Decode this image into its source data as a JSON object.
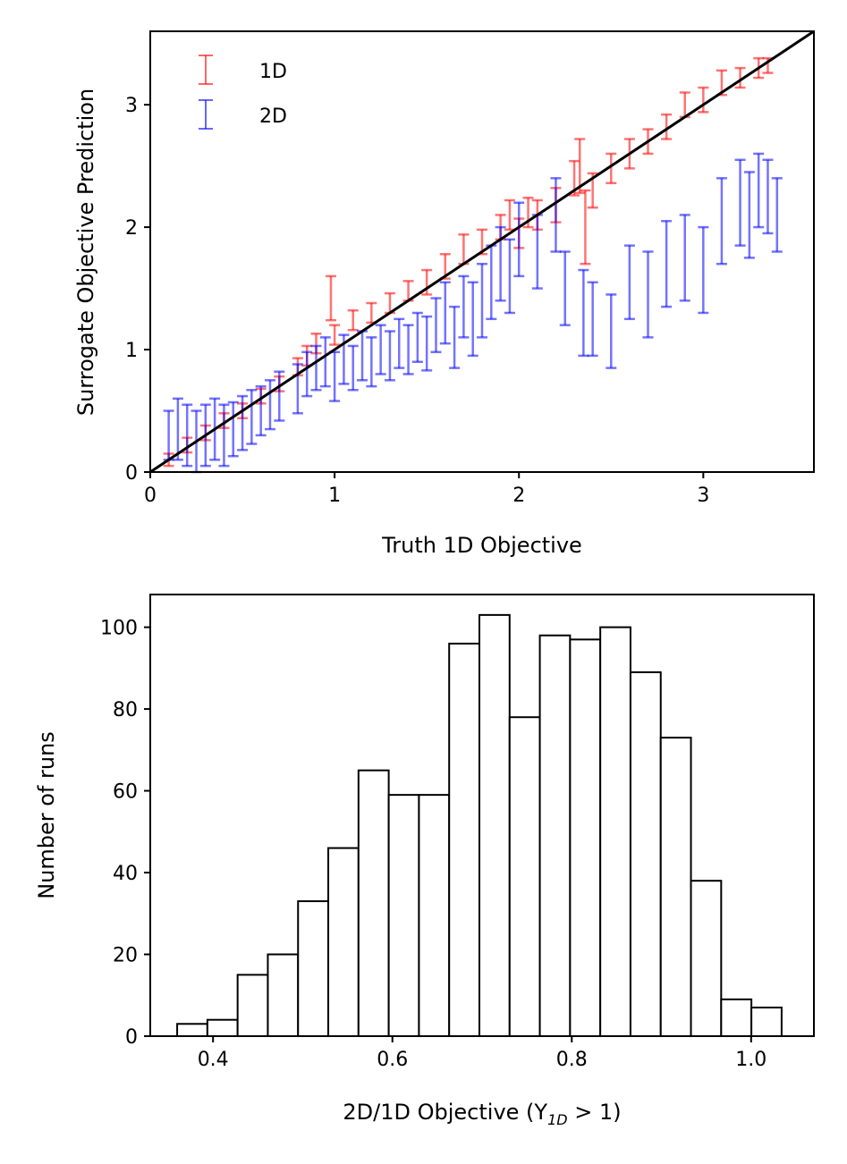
{
  "chart_data": [
    {
      "type": "scatter",
      "title": "",
      "xlabel": "Truth 1D Objective",
      "ylabel": "Surrogate Objective Prediction",
      "xlim": [
        0,
        3.6
      ],
      "ylim": [
        0,
        3.6
      ],
      "xticks": [
        "0",
        "1",
        "2",
        "3"
      ],
      "yticks": [
        "0",
        "1",
        "2",
        "3"
      ],
      "legend": "top-left",
      "identity_line": true,
      "series": [
        {
          "name": "1D",
          "color": "#ff0000",
          "points": [
            [
              0.1,
              0.1,
              0.05
            ],
            [
              0.2,
              0.22,
              0.06
            ],
            [
              0.3,
              0.32,
              0.06
            ],
            [
              0.4,
              0.42,
              0.06
            ],
            [
              0.5,
              0.5,
              0.06
            ],
            [
              0.6,
              0.62,
              0.06
            ],
            [
              0.7,
              0.72,
              0.06
            ],
            [
              0.8,
              0.86,
              0.07
            ],
            [
              0.85,
              0.95,
              0.08
            ],
            [
              0.9,
              1.05,
              0.08
            ],
            [
              0.98,
              1.42,
              0.18
            ],
            [
              1.0,
              1.12,
              0.08
            ],
            [
              1.1,
              1.24,
              0.08
            ],
            [
              1.2,
              1.3,
              0.08
            ],
            [
              1.3,
              1.38,
              0.08
            ],
            [
              1.4,
              1.48,
              0.08
            ],
            [
              1.5,
              1.55,
              0.1
            ],
            [
              1.6,
              1.68,
              0.1
            ],
            [
              1.7,
              1.82,
              0.12
            ],
            [
              1.8,
              1.88,
              0.1
            ],
            [
              1.9,
              2.0,
              0.1
            ],
            [
              1.95,
              2.1,
              0.12
            ],
            [
              2.0,
              1.95,
              0.12
            ],
            [
              2.05,
              2.12,
              0.12
            ],
            [
              2.1,
              2.1,
              0.12
            ],
            [
              2.2,
              2.18,
              0.14
            ],
            [
              2.3,
              2.4,
              0.14
            ],
            [
              2.33,
              2.5,
              0.22
            ],
            [
              2.36,
              2.0,
              0.3
            ],
            [
              2.4,
              2.3,
              0.14
            ],
            [
              2.5,
              2.48,
              0.12
            ],
            [
              2.6,
              2.6,
              0.12
            ],
            [
              2.7,
              2.7,
              0.1
            ],
            [
              2.8,
              2.82,
              0.1
            ],
            [
              2.9,
              3.0,
              0.1
            ],
            [
              3.0,
              3.04,
              0.1
            ],
            [
              3.1,
              3.18,
              0.1
            ],
            [
              3.2,
              3.22,
              0.08
            ],
            [
              3.3,
              3.3,
              0.08
            ],
            [
              3.35,
              3.32,
              0.06
            ]
          ]
        },
        {
          "name": "2D",
          "color": "#0000ff",
          "points": [
            [
              0.1,
              0.3,
              0.2
            ],
            [
              0.15,
              0.35,
              0.25
            ],
            [
              0.2,
              0.3,
              0.25
            ],
            [
              0.25,
              0.25,
              0.25
            ],
            [
              0.3,
              0.3,
              0.25
            ],
            [
              0.35,
              0.35,
              0.25
            ],
            [
              0.4,
              0.3,
              0.25
            ],
            [
              0.45,
              0.35,
              0.22
            ],
            [
              0.5,
              0.4,
              0.22
            ],
            [
              0.55,
              0.45,
              0.22
            ],
            [
              0.6,
              0.5,
              0.2
            ],
            [
              0.65,
              0.55,
              0.2
            ],
            [
              0.7,
              0.62,
              0.2
            ],
            [
              0.8,
              0.68,
              0.2
            ],
            [
              0.85,
              0.8,
              0.18
            ],
            [
              0.9,
              0.85,
              0.18
            ],
            [
              0.95,
              0.9,
              0.2
            ],
            [
              1.0,
              0.78,
              0.2
            ],
            [
              1.05,
              0.92,
              0.2
            ],
            [
              1.1,
              0.85,
              0.18
            ],
            [
              1.15,
              0.95,
              0.2
            ],
            [
              1.2,
              0.9,
              0.2
            ],
            [
              1.25,
              1.0,
              0.2
            ],
            [
              1.3,
              0.95,
              0.2
            ],
            [
              1.35,
              1.05,
              0.2
            ],
            [
              1.4,
              1.0,
              0.2
            ],
            [
              1.45,
              1.1,
              0.2
            ],
            [
              1.5,
              1.05,
              0.22
            ],
            [
              1.55,
              1.2,
              0.22
            ],
            [
              1.6,
              1.3,
              0.25
            ],
            [
              1.65,
              1.1,
              0.25
            ],
            [
              1.7,
              1.35,
              0.25
            ],
            [
              1.75,
              1.25,
              0.3
            ],
            [
              1.8,
              1.4,
              0.3
            ],
            [
              1.85,
              1.55,
              0.3
            ],
            [
              1.9,
              1.7,
              0.3
            ],
            [
              1.95,
              1.6,
              0.3
            ],
            [
              2.0,
              1.9,
              0.3
            ],
            [
              2.1,
              1.8,
              0.3
            ],
            [
              2.2,
              2.1,
              0.3
            ],
            [
              2.25,
              1.5,
              0.3
            ],
            [
              2.35,
              1.3,
              0.35
            ],
            [
              2.4,
              1.25,
              0.3
            ],
            [
              2.5,
              1.15,
              0.3
            ],
            [
              2.6,
              1.55,
              0.3
            ],
            [
              2.7,
              1.45,
              0.35
            ],
            [
              2.8,
              1.7,
              0.35
            ],
            [
              2.9,
              1.75,
              0.35
            ],
            [
              3.0,
              1.65,
              0.35
            ],
            [
              3.1,
              2.05,
              0.35
            ],
            [
              3.2,
              2.2,
              0.35
            ],
            [
              3.25,
              2.1,
              0.35
            ],
            [
              3.3,
              2.3,
              0.3
            ],
            [
              3.35,
              2.25,
              0.3
            ],
            [
              3.4,
              2.1,
              0.3
            ]
          ]
        }
      ]
    },
    {
      "type": "bar",
      "title": "",
      "xlabel": "2D/1D Objective (Y",
      "xlabel_sub": "1D",
      "xlabel_tail": " > 1)",
      "ylabel": "Number of runs",
      "xlim": [
        0.33,
        1.07
      ],
      "ylim": [
        0,
        108
      ],
      "xticks": [
        "0.4",
        "0.6",
        "0.8",
        "1.0"
      ],
      "yticks": [
        "0",
        "20",
        "40",
        "60",
        "80",
        "100"
      ],
      "bin_start": 0.36,
      "bin_width": 0.0337,
      "values": [
        3,
        4,
        15,
        20,
        33,
        46,
        65,
        59,
        59,
        96,
        103,
        78,
        98,
        97,
        100,
        89,
        73,
        38,
        9,
        7
      ]
    }
  ]
}
